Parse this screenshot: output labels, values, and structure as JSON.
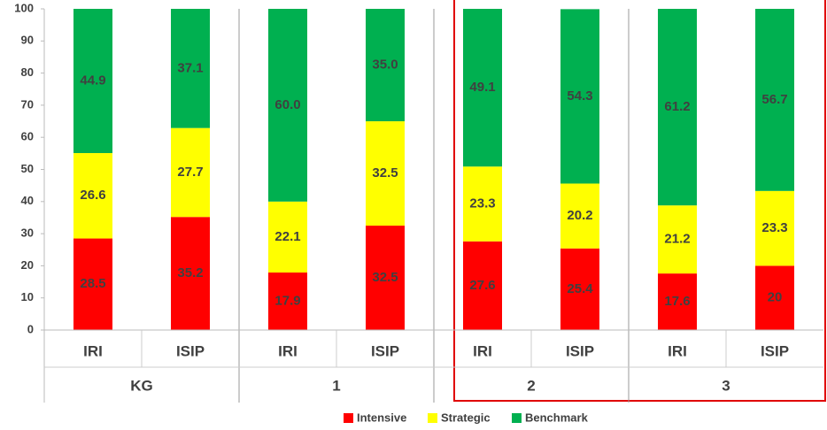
{
  "chart_data": {
    "type": "stacked_bar",
    "categories": [
      "IRI",
      "ISIP",
      "IRI",
      "ISIP",
      "IRI",
      "ISIP",
      "IRI",
      "ISIP"
    ],
    "groups": [
      "KG",
      "1",
      "2",
      "3"
    ],
    "series": [
      {
        "name": "Intensive",
        "color": "#ff0000",
        "values": [
          28.5,
          35.2,
          17.9,
          32.5,
          27.6,
          25.4,
          17.6,
          20
        ]
      },
      {
        "name": "Strategic",
        "color": "#ffff00",
        "values": [
          26.6,
          27.7,
          22.1,
          32.5,
          23.3,
          20.2,
          21.2,
          23.3
        ]
      },
      {
        "name": "Benchmark",
        "color": "#00b050",
        "values": [
          44.9,
          37.1,
          60,
          35,
          49.1,
          54.3,
          61.2,
          56.7
        ],
        "value_labels": [
          "44.9",
          "37.1",
          "60.0",
          "35.0",
          "49.1",
          "54.3",
          "61.2",
          "56.7"
        ]
      }
    ],
    "ylim": [
      0,
      100
    ],
    "yticks": [
      0,
      10,
      20,
      30,
      40,
      50,
      60,
      70,
      80,
      90,
      100
    ],
    "grid": false,
    "legend": "bottom"
  }
}
